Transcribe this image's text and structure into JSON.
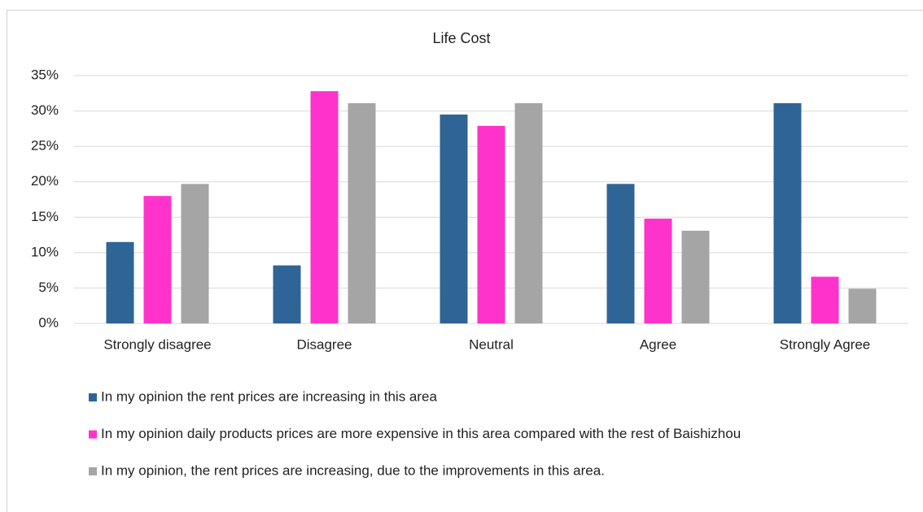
{
  "chart_data": {
    "type": "bar",
    "title": "Life Cost",
    "categories": [
      "Strongly disagree",
      "Disagree",
      "Neutral",
      "Agree",
      "Strongly Agree"
    ],
    "series": [
      {
        "name": "In my opinion the rent prices are increasing in this area",
        "color": "#2f6497",
        "values": [
          11.5,
          8.2,
          29.5,
          19.7,
          31.1
        ]
      },
      {
        "name": "In my opinion daily products prices are more expensive in this area compared with the rest of Baishizhou",
        "color": "#ff33cc",
        "values": [
          18.0,
          32.8,
          27.9,
          14.8,
          6.6
        ]
      },
      {
        "name": "In my opinion, the rent prices are increasing, due to the improvements in this area.",
        "color": "#a5a5a5",
        "values": [
          19.7,
          31.1,
          31.1,
          13.1,
          4.9
        ]
      }
    ],
    "ylim": [
      0,
      35
    ],
    "yticks": [
      {
        "value": 0,
        "label": "0%"
      },
      {
        "value": 5,
        "label": "5%"
      },
      {
        "value": 10,
        "label": "10%"
      },
      {
        "value": 15,
        "label": "15%"
      },
      {
        "value": 20,
        "label": "20%"
      },
      {
        "value": 25,
        "label": "25%"
      },
      {
        "value": 30,
        "label": "30%"
      },
      {
        "value": 35,
        "label": "35%"
      }
    ],
    "grid": true,
    "legend": "bottom"
  }
}
